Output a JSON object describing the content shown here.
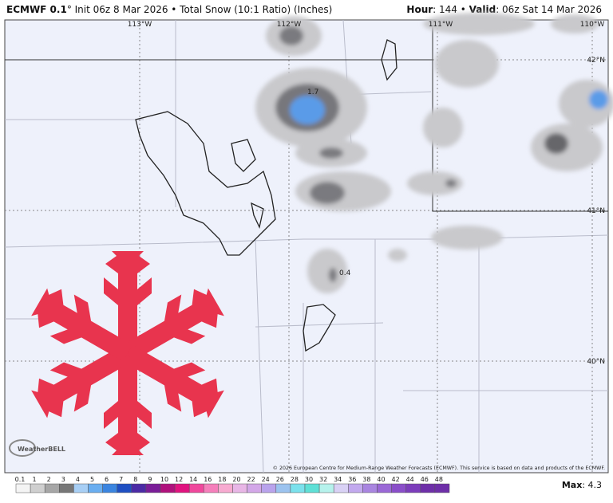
{
  "header": {
    "left_bold": "ECMWF 0.1",
    "left_rest": "° Init 06z 8 Mar 2026 • Total Snow (10:1 Ratio) (Inches)",
    "hour_label": "Hour",
    "hour_rest": ": 144 • ",
    "valid_label": "Valid",
    "valid_rest": ": 06z Sat 14 Mar 2026"
  },
  "map": {
    "lon_labels": [
      "113°W",
      "112°W",
      "111°W",
      "110°W"
    ],
    "lat_labels": [
      "42°N",
      "41°N",
      "40°N"
    ],
    "value_labels": [
      "1.7",
      "0.4"
    ],
    "copyright": "© 2026 European Centre for Medium-Range Weather Forecasts (ECMWF). This service is based on data and products of the ECMWF.",
    "logo": "WeatherBELL"
  },
  "legend": {
    "labels": [
      "0.1",
      "1",
      "2",
      "3",
      "4",
      "5",
      "6",
      "7",
      "8",
      "9",
      "10",
      "12",
      "14",
      "16",
      "18",
      "20",
      "22",
      "24",
      "26",
      "28",
      "30",
      "32",
      "34",
      "36",
      "38",
      "40",
      "42",
      "44",
      "46",
      "48"
    ],
    "max_label": "Max",
    "max_rest": ": 4.3"
  }
}
